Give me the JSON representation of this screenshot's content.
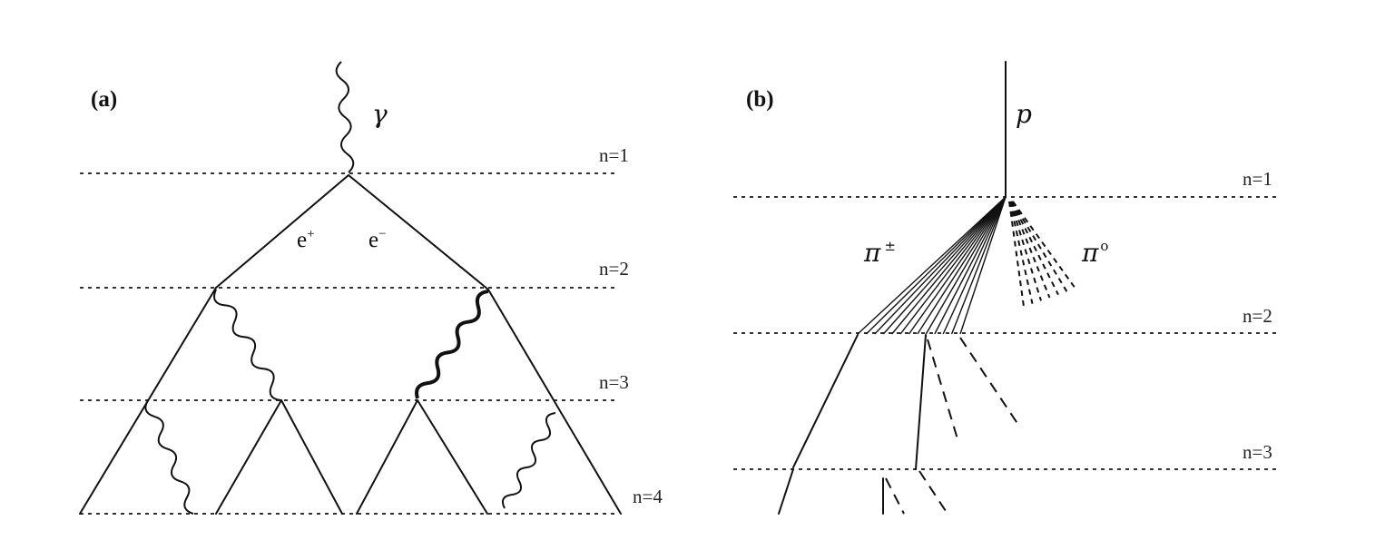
{
  "diagram": {
    "panel_a": {
      "label": "(a)",
      "photon": "γ",
      "positron_base": "e",
      "positron_sup": "+",
      "electron_base": "e",
      "electron_sup": "−",
      "levels": [
        "n=1",
        "n=2",
        "n=3",
        "n=4"
      ]
    },
    "panel_b": {
      "label": "(b)",
      "proton": "p",
      "charged_pion_base": "π",
      "charged_pion_sup": "±",
      "neutral_pion_base": "π",
      "neutral_pion_sup": "o",
      "levels": [
        "n=1",
        "n=2",
        "n=3"
      ]
    }
  }
}
